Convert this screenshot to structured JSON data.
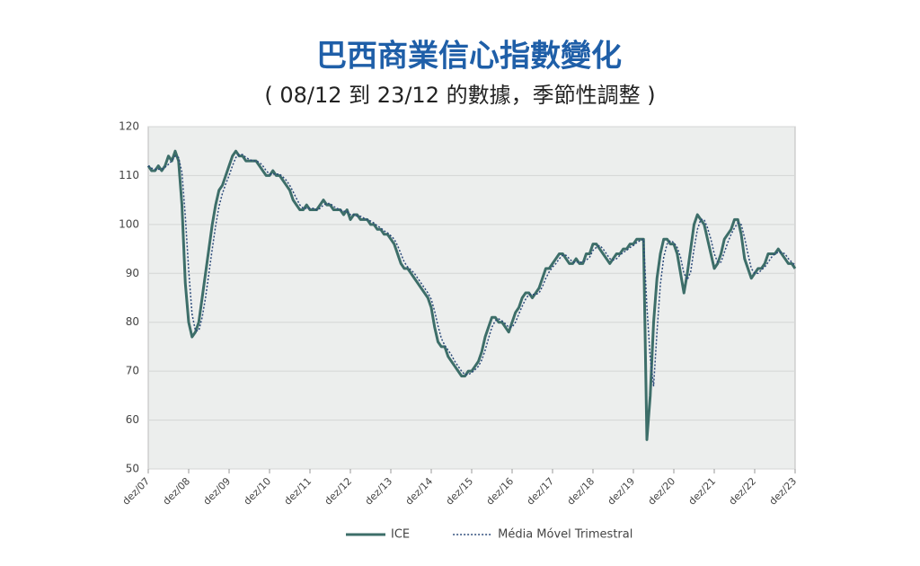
{
  "chart_data": {
    "type": "line",
    "title": "巴西商業信心指數變化",
    "subtitle": "( 08/12 到 23/12 的數據，季節性調整 )",
    "categories": [
      "dez/07",
      null,
      null,
      null,
      null,
      null,
      null,
      null,
      null,
      null,
      null,
      null,
      "dez/08",
      null,
      null,
      null,
      null,
      null,
      null,
      null,
      null,
      null,
      null,
      null,
      "dez/09",
      null,
      null,
      null,
      null,
      null,
      null,
      null,
      null,
      null,
      null,
      null,
      "dez/10",
      null,
      null,
      null,
      null,
      null,
      null,
      null,
      null,
      null,
      null,
      null,
      "dez/11",
      null,
      null,
      null,
      null,
      null,
      null,
      null,
      null,
      null,
      null,
      null,
      "dez/12",
      null,
      null,
      null,
      null,
      null,
      null,
      null,
      null,
      null,
      null,
      null,
      "dez/13",
      null,
      null,
      null,
      null,
      null,
      null,
      null,
      null,
      null,
      null,
      null,
      "dez/14",
      null,
      null,
      null,
      null,
      null,
      null,
      null,
      null,
      null,
      null,
      null,
      "dez/15",
      null,
      null,
      null,
      null,
      null,
      null,
      null,
      null,
      null,
      null,
      null,
      "dez/16",
      null,
      null,
      null,
      null,
      null,
      null,
      null,
      null,
      null,
      null,
      null,
      "dez/17",
      null,
      null,
      null,
      null,
      null,
      null,
      null,
      null,
      null,
      null,
      null,
      "dez/18",
      null,
      null,
      null,
      null,
      null,
      null,
      null,
      null,
      null,
      null,
      null,
      "dez/19",
      null,
      null,
      null,
      null,
      null,
      null,
      null,
      null,
      null,
      null,
      null,
      "dez/20",
      null,
      null,
      null,
      null,
      null,
      null,
      null,
      null,
      null,
      null,
      null,
      "dez/21",
      null,
      null,
      null,
      null,
      null,
      null,
      null,
      null,
      null,
      null,
      null,
      "dez/22",
      null,
      null,
      null,
      null,
      null,
      null,
      null,
      null,
      null,
      null,
      null,
      "dez/23"
    ],
    "series": [
      {
        "name": "ICE",
        "color": "#3d6e69",
        "style": "solid",
        "values": [
          112,
          111,
          111,
          112,
          111,
          112,
          114,
          113,
          115,
          113,
          104,
          88,
          80,
          77,
          78,
          80,
          85,
          90,
          95,
          100,
          104,
          107,
          108,
          110,
          112,
          114,
          115,
          114,
          114,
          113,
          113,
          113,
          113,
          112,
          111,
          110,
          110,
          111,
          110,
          110,
          109,
          108,
          107,
          105,
          104,
          103,
          103,
          104,
          103,
          103,
          103,
          104,
          105,
          104,
          104,
          103,
          103,
          103,
          102,
          103,
          101,
          102,
          102,
          101,
          101,
          101,
          100,
          100,
          99,
          99,
          98,
          98,
          97,
          96,
          94,
          92,
          91,
          91,
          90,
          89,
          88,
          87,
          86,
          85,
          83,
          79,
          76,
          75,
          75,
          73,
          72,
          71,
          70,
          69,
          69,
          70,
          70,
          71,
          72,
          74,
          77,
          79,
          81,
          81,
          80,
          80,
          79,
          78,
          80,
          82,
          83,
          85,
          86,
          86,
          85,
          86,
          87,
          89,
          91,
          91,
          92,
          93,
          94,
          94,
          93,
          92,
          92,
          93,
          92,
          92,
          94,
          94,
          96,
          96,
          95,
          94,
          93,
          92,
          93,
          94,
          94,
          95,
          95,
          96,
          96,
          97,
          97,
          97,
          56,
          65,
          80,
          89,
          94,
          97,
          97,
          96,
          96,
          94,
          90,
          86,
          90,
          95,
          100,
          102,
          101,
          100,
          97,
          94,
          91,
          92,
          94,
          97,
          98,
          99,
          101,
          101,
          98,
          93,
          91,
          89,
          90,
          91,
          91,
          92,
          94,
          94,
          94,
          95,
          94,
          93,
          92,
          92,
          91
        ]
      },
      {
        "name": "Média Móvel Trimestral",
        "color": "#2b4a7a",
        "style": "dotted",
        "values": [
          112,
          111.5,
          111.3,
          111.3,
          111.3,
          111.7,
          112.3,
          113,
          114,
          113.7,
          110.7,
          101.7,
          90.7,
          81.7,
          78.3,
          78.3,
          81,
          85,
          90,
          95,
          99.7,
          103.7,
          106.3,
          108.3,
          110,
          112,
          113.7,
          114.3,
          114.3,
          113.7,
          113.3,
          113,
          113,
          112.7,
          112,
          111,
          110.3,
          110.3,
          110.3,
          110.3,
          109.7,
          109,
          108,
          106.7,
          105.3,
          104,
          103.3,
          103.3,
          103.3,
          103.3,
          103,
          103.3,
          104,
          104.3,
          104.3,
          103.7,
          103.3,
          103,
          102.7,
          102.7,
          102,
          102,
          101.7,
          101.7,
          101.3,
          101,
          100.7,
          100.3,
          99.7,
          99.3,
          98.7,
          98.3,
          97.7,
          97,
          95.7,
          94,
          92.3,
          91.3,
          90.7,
          90,
          89,
          88,
          87,
          86,
          84.7,
          82.3,
          79.3,
          76.7,
          75.3,
          74.3,
          73.3,
          72,
          71,
          70,
          69.3,
          69.3,
          69.7,
          70.3,
          71,
          72.3,
          74.3,
          76.7,
          79,
          80.3,
          80.7,
          80.3,
          79.7,
          79,
          79,
          80,
          81.7,
          83.3,
          84.7,
          85.7,
          85.7,
          85.7,
          86,
          87.3,
          89,
          90.3,
          91.3,
          92,
          93,
          93.7,
          93.7,
          93,
          92.3,
          92.3,
          92.3,
          92.3,
          92.7,
          93.3,
          94.7,
          95.3,
          95.7,
          95,
          94,
          93,
          92.7,
          93,
          93.7,
          94.3,
          94.7,
          95.3,
          95.7,
          96.3,
          96.7,
          97,
          83.3,
          72.7,
          67,
          78,
          87.7,
          93.3,
          96,
          96.7,
          96.3,
          95.3,
          93.3,
          90,
          88.7,
          90.3,
          95,
          99,
          101,
          101,
          99.3,
          97,
          94,
          92.3,
          92.3,
          94.3,
          96.3,
          98,
          99.3,
          100.3,
          100,
          97.3,
          94,
          91,
          90,
          90,
          90.7,
          91.3,
          92.3,
          93.3,
          94,
          94.3,
          94.3,
          94,
          93,
          92.3,
          91.7
        ]
      }
    ],
    "ylim": [
      50,
      120
    ],
    "yticks": [
      50,
      60,
      70,
      80,
      90,
      100,
      110,
      120
    ],
    "grid": true,
    "legend": "bottom"
  }
}
